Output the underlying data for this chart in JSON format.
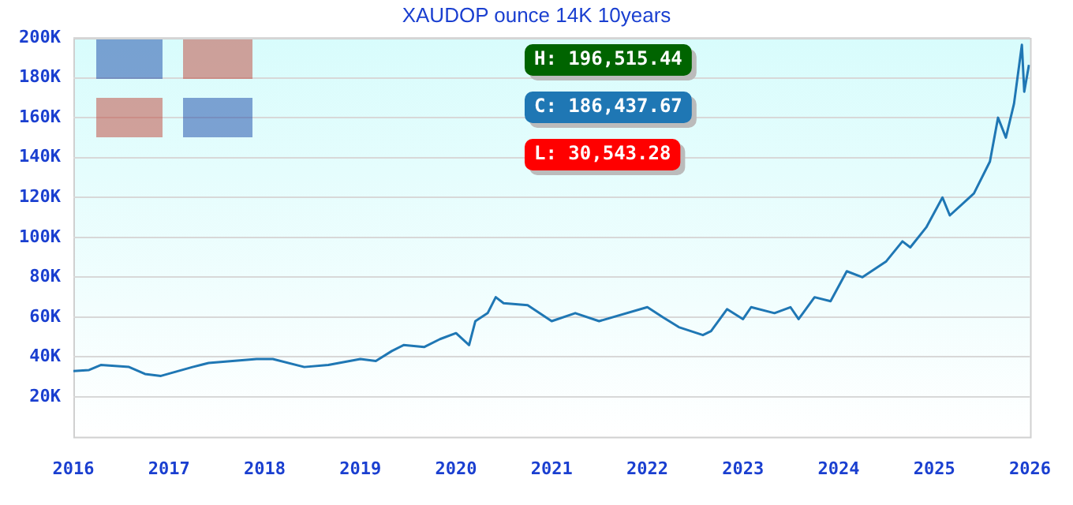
{
  "chart_data": {
    "type": "line",
    "title": "XAUDOP ounce 14K 10years",
    "x": [
      "2016-01-01",
      "2016-03-01",
      "2016-04-15",
      "2016-08-01",
      "2016-10-01",
      "2016-12-01",
      "2017-04-01",
      "2017-06-01",
      "2017-12-01",
      "2018-02-01",
      "2018-06-01",
      "2018-09-01",
      "2019-01-01",
      "2019-03-01",
      "2019-05-01",
      "2019-06-15",
      "2019-09-01",
      "2019-11-01",
      "2020-01-01",
      "2020-02-20",
      "2020-03-15",
      "2020-05-01",
      "2020-06-01",
      "2020-07-01",
      "2020-10-01",
      "2021-01-01",
      "2021-04-01",
      "2021-07-01",
      "2022-01-01",
      "2022-03-01",
      "2022-05-01",
      "2022-08-01",
      "2022-09-01",
      "2022-11-01",
      "2023-01-01",
      "2023-02-01",
      "2023-05-01",
      "2023-07-01",
      "2023-08-01",
      "2023-10-01",
      "2023-12-01",
      "2024-02-01",
      "2024-04-01",
      "2024-07-01",
      "2024-09-01",
      "2024-10-01",
      "2024-12-01",
      "2025-02-01",
      "2025-03-01",
      "2025-06-01",
      "2025-08-01",
      "2025-09-01",
      "2025-10-01",
      "2025-11-01",
      "2025-12-01",
      "2025-12-10",
      "2025-12-28"
    ],
    "series": [
      {
        "color": "#1f77b4",
        "values": [
          33000,
          33500,
          36000,
          35000,
          31500,
          30543,
          35000,
          37000,
          39000,
          39000,
          35000,
          36000,
          39000,
          38000,
          43000,
          46000,
          45000,
          49000,
          52000,
          46000,
          58000,
          62000,
          70000,
          67000,
          66000,
          58000,
          62000,
          58000,
          65000,
          60000,
          55000,
          51000,
          53000,
          64000,
          59000,
          65000,
          62000,
          65000,
          59000,
          70000,
          68000,
          83000,
          80000,
          88000,
          98000,
          95000,
          105000,
          120000,
          111000,
          122000,
          138000,
          160000,
          150000,
          167000,
          196515,
          173000,
          186438
        ]
      }
    ],
    "xlim": [
      "2016-01-01",
      "2026-01-01"
    ],
    "xticks": [
      "2016",
      "2017",
      "2018",
      "2019",
      "2020",
      "2021",
      "2022",
      "2023",
      "2024",
      "2025",
      "2026"
    ],
    "ylim": [
      0,
      200000
    ],
    "yticks": [
      {
        "value": 20000,
        "label": "20K"
      },
      {
        "value": 40000,
        "label": "40K"
      },
      {
        "value": 60000,
        "label": "60K"
      },
      {
        "value": 80000,
        "label": "80K"
      },
      {
        "value": 100000,
        "label": "100K"
      },
      {
        "value": 120000,
        "label": "120K"
      },
      {
        "value": 140000,
        "label": "140K"
      },
      {
        "value": 160000,
        "label": "160K"
      },
      {
        "value": 180000,
        "label": "180K"
      },
      {
        "value": 200000,
        "label": "200K"
      }
    ],
    "grid": "y",
    "legend": false,
    "marker": "none",
    "line_style": "solid",
    "annotations": [
      "H: 196,515.44",
      "C: 186,437.67",
      "L: 30,543.28"
    ]
  }
}
